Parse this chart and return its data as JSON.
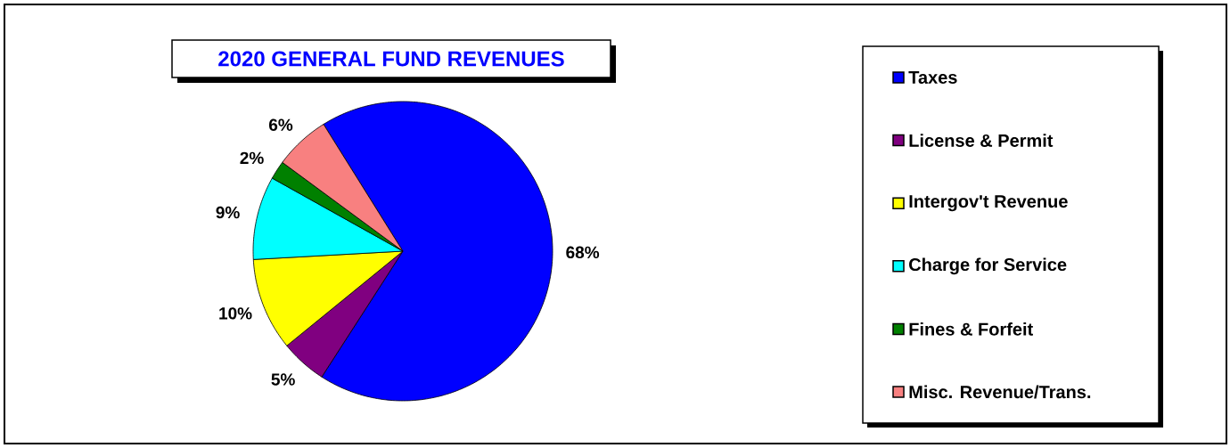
{
  "chart_data": {
    "type": "pie",
    "title": "2020 GENERAL FUND REVENUES",
    "categories": [
      "Taxes",
      "License &  Permit",
      "Intergov't Revenue",
      "Charge for Service",
      "Fines & Forfeit",
      "Misc. Revenue/Trans."
    ],
    "values": [
      68,
      5,
      10,
      9,
      2,
      6
    ],
    "value_labels": [
      "68%",
      "5%",
      "10%",
      "9%",
      "2%",
      "6%"
    ],
    "colors": [
      "#0000ff",
      "#800080",
      "#ffff00",
      "#00ffff",
      "#008000",
      "#f88080"
    ],
    "legend": "right"
  }
}
